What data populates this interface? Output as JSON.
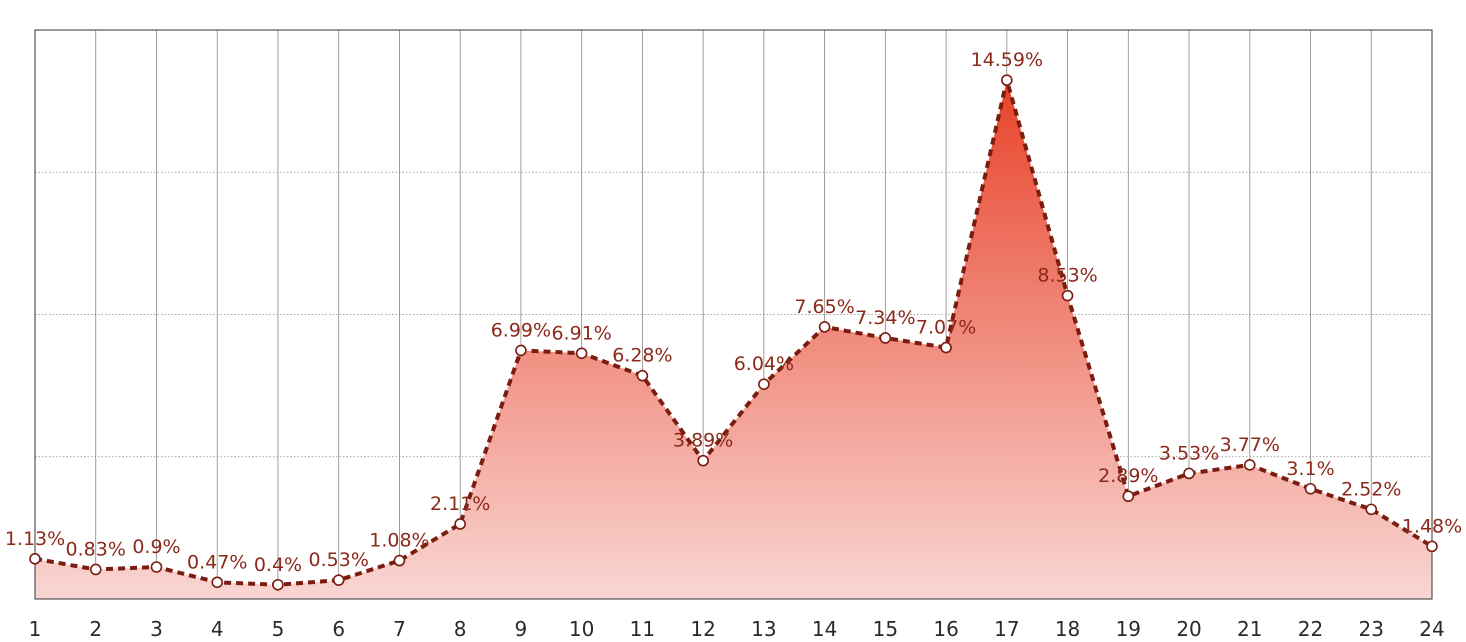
{
  "chart_data": {
    "type": "area",
    "title": "",
    "xlabel": "",
    "ylabel": "",
    "x": [
      1,
      2,
      3,
      4,
      5,
      6,
      7,
      8,
      9,
      10,
      11,
      12,
      13,
      14,
      15,
      16,
      17,
      18,
      19,
      20,
      21,
      22,
      23,
      24
    ],
    "series": [
      {
        "values": [
          1.13,
          0.83,
          0.9,
          0.47,
          0.4,
          0.53,
          1.08,
          2.11,
          6.99,
          6.91,
          6.28,
          3.89,
          6.04,
          7.65,
          7.34,
          7.07,
          14.59,
          8.53,
          2.89,
          3.53,
          3.77,
          3.1,
          2.52,
          1.48
        ],
        "labels": [
          "1.13%",
          "0.83%",
          "0.9%",
          "0.47%",
          "0.4%",
          "0.53%",
          "1.08%",
          "2.11%",
          "6.99%",
          "6.91%",
          "6.28%",
          "3.89%",
          "6.04%",
          "7.65%",
          "7.34%",
          "7.07%",
          "14.59%",
          "8.53%",
          "2.89%",
          "3.53%",
          "3.77%",
          "3.1%",
          "2.52%",
          "1.48%"
        ]
      }
    ],
    "xlim": [
      1,
      24
    ],
    "ylim": [
      0,
      16
    ],
    "y_gridlines": [
      4,
      8,
      12
    ],
    "x_grid": true,
    "y_grid": true,
    "legend": "none",
    "colors": {
      "line": "#7a1c10",
      "label": "#8b2a1a",
      "area_top": "#e8432a",
      "area_bottom": "#f9d6d3",
      "marker_fill": "#ffffff",
      "grid": "#888888",
      "frame": "#333333"
    }
  }
}
